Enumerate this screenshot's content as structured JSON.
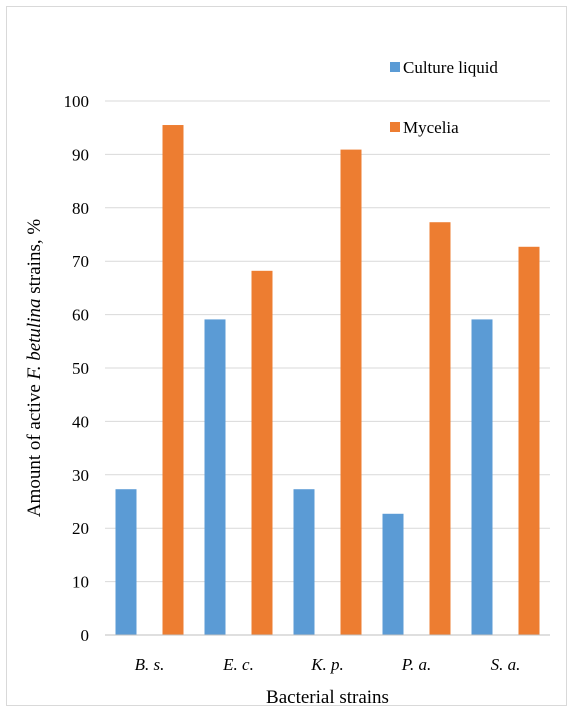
{
  "chart_data": {
    "type": "bar",
    "categories": [
      "B. s.",
      "E. c.",
      "K. p.",
      "P. a.",
      "S. a."
    ],
    "series": [
      {
        "name": "Culture liquid",
        "color": "#5b9bd5",
        "values": [
          27.3,
          59.1,
          27.3,
          22.7,
          59.1
        ]
      },
      {
        "name": "Mycelia",
        "color": "#ed7d31",
        "values": [
          95.5,
          68.2,
          90.9,
          77.3,
          72.7
        ]
      }
    ],
    "xlabel": "Bacterial strains",
    "ylabel": {
      "prefix": "Amount of active ",
      "italic": "F. betulina",
      "suffix": " strains, %"
    },
    "ylim": [
      0,
      100
    ],
    "yticks": [
      0,
      10,
      20,
      30,
      40,
      50,
      60,
      70,
      80,
      90,
      100
    ],
    "grid": true,
    "legend_position": "top-right"
  }
}
